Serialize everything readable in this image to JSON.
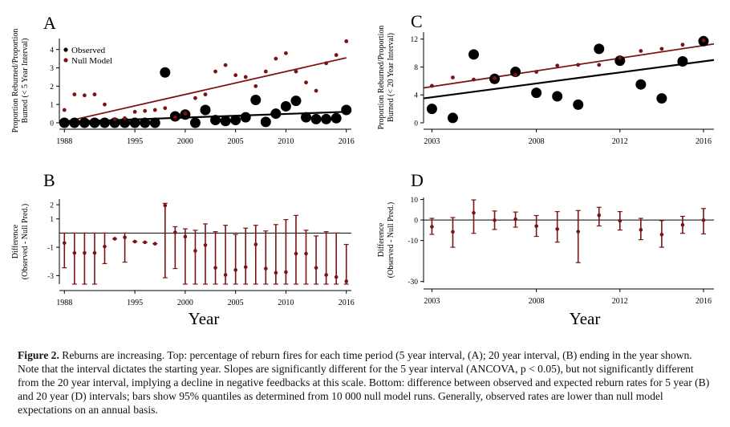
{
  "colors": {
    "observed": "#000000",
    "null_model": "#7a1414",
    "axis": "#000000"
  },
  "caption": {
    "lead": "Figure 2.",
    "text": " Reburns are increasing. Top: percentage of reburn fires for each time period (5 year interval, (A); 20 year interval, (B) ending in the year shown. Note that the interval dictates the starting year. Slopes are significantly different for the 5 year interval (ANCOVA, p < 0.05), but not significantly different from the 20 year interval, implying a decline in negative feedbacks at this scale. Bottom: difference between observed and expected reburn rates for 5 year (B) and 20 year (D) intervals; bars show 95% quantiles as determined from 10 000 null model runs. Generally, observed rates are lower than null model expectations on an annual basis."
  },
  "x_axis_label": "Year",
  "chart_data": [
    {
      "panel": "A",
      "type": "scatter",
      "ylabel_line1": "Proportion Reburned/Proportion",
      "ylabel_line2": "Burned (< 5 Year Interval)",
      "xlim": [
        1987.5,
        2016.5
      ],
      "ylim": [
        0,
        4.6
      ],
      "xticks": [
        "1988",
        "1995",
        "2000",
        "2005",
        "2010",
        "2016"
      ],
      "xtick_values": [
        1988,
        1995,
        2000,
        2005,
        2010,
        2016
      ],
      "yticks": [
        "0",
        "1",
        "2",
        "3",
        "4"
      ],
      "ytick_values": [
        0,
        1,
        2,
        3,
        4
      ],
      "legend": [
        "Observed",
        "Null Model"
      ],
      "legend_position": "top-left",
      "x": [
        1988,
        1989,
        1990,
        1991,
        1992,
        1993,
        1994,
        1995,
        1996,
        1997,
        1998,
        1999,
        2000,
        2001,
        2002,
        2003,
        2004,
        2005,
        2006,
        2007,
        2008,
        2009,
        2010,
        2011,
        2012,
        2013,
        2014,
        2015,
        2016
      ],
      "observed": [
        0,
        0,
        0,
        0,
        0,
        0,
        0,
        0,
        0,
        0,
        2.75,
        0.35,
        0.45,
        0,
        0.7,
        0.15,
        0.1,
        0.15,
        0.3,
        1.25,
        0.05,
        0.5,
        0.9,
        1.2,
        0.3,
        0.2,
        0.2,
        0.25,
        0.7
      ],
      "null_model": [
        0.7,
        1.55,
        1.5,
        1.55,
        1.0,
        0.2,
        0.25,
        0.6,
        0.65,
        0.7,
        0.8,
        0.3,
        0.5,
        1.35,
        1.55,
        2.8,
        3.15,
        2.6,
        2.5,
        2.0,
        2.8,
        3.5,
        3.8,
        2.8,
        2.2,
        1.75,
        3.25,
        3.7,
        4.45
      ],
      "observed_trend": [
        [
          1988,
          0.05
        ],
        [
          2016,
          0.6
        ]
      ],
      "null_trend": [
        [
          1988,
          0.05
        ],
        [
          2016,
          3.55
        ]
      ]
    },
    {
      "panel": "C",
      "type": "scatter",
      "ylabel_line1": "Proportion Reburned/Proportion",
      "ylabel_line2": "Burned (< 20 Year Interval)",
      "xlim": [
        2002.6,
        2016.5
      ],
      "ylim": [
        0,
        13
      ],
      "xticks": [
        "2003",
        "2008",
        "2012",
        "2016"
      ],
      "xtick_values": [
        2003,
        2008,
        2012,
        2016
      ],
      "yticks": [
        "0",
        "4",
        "8",
        "12"
      ],
      "ytick_values": [
        0,
        4,
        8,
        12
      ],
      "x": [
        2003,
        2004,
        2005,
        2006,
        2007,
        2008,
        2009,
        2010,
        2011,
        2012,
        2013,
        2014,
        2015,
        2016
      ],
      "observed": [
        2.0,
        0.7,
        9.8,
        6.3,
        7.3,
        4.3,
        3.8,
        2.6,
        10.6,
        8.9,
        5.5,
        3.5,
        8.8,
        11.7
      ],
      "null_model": [
        5.3,
        6.5,
        6.2,
        6.4,
        6.9,
        7.3,
        8.2,
        8.3,
        8.3,
        9.3,
        10.3,
        10.6,
        11.2,
        11.8
      ],
      "observed_trend": [
        [
          2002.6,
          3.5
        ],
        [
          2016.5,
          9.0
        ]
      ],
      "null_trend": [
        [
          2002.6,
          5.0
        ],
        [
          2016.5,
          11.3
        ]
      ]
    },
    {
      "panel": "B",
      "type": "errorbar",
      "ylabel_line1": "Difference",
      "ylabel_line2": "(Observed - Null Pred.)",
      "xlim": [
        1987.5,
        2016.5
      ],
      "ylim": [
        -3.6,
        2.4
      ],
      "xticks": [
        "1988",
        "1995",
        "2000",
        "2005",
        "2010",
        "2016"
      ],
      "xtick_values": [
        1988,
        1995,
        2000,
        2005,
        2010,
        2016
      ],
      "yticks": [
        "-3",
        "-1",
        "1",
        "2"
      ],
      "ytick_values": [
        -3,
        -1,
        1,
        2
      ],
      "x": [
        1988,
        1989,
        1990,
        1991,
        1992,
        1993,
        1994,
        1995,
        1996,
        1997,
        1998,
        1999,
        2000,
        2001,
        2002,
        2003,
        2004,
        2005,
        2006,
        2007,
        2008,
        2009,
        2010,
        2011,
        2012,
        2013,
        2014,
        2015,
        2016
      ],
      "value": [
        -0.7,
        -1.4,
        -1.4,
        -1.4,
        -0.95,
        -0.4,
        -0.3,
        -0.6,
        -0.65,
        -0.75,
        1.95,
        0.05,
        -0.25,
        -1.25,
        -0.85,
        -2.45,
        -2.95,
        -2.6,
        -2.4,
        -0.8,
        -2.5,
        -2.8,
        -2.75,
        -1.45,
        -1.45,
        -2.45,
        -2.95,
        -3.1,
        -3.4
      ],
      "lower": [
        -2.45,
        -3.6,
        -3.6,
        -3.6,
        -2.15,
        -0.4,
        -2.05,
        -0.6,
        -0.65,
        -0.75,
        -3.15,
        -2.5,
        -3.6,
        -3.6,
        -3.6,
        -3.6,
        -3.6,
        -3.6,
        -3.6,
        -3.6,
        -3.6,
        -3.6,
        -3.6,
        -3.6,
        -3.6,
        -3.6,
        -3.6,
        -3.6,
        -3.6
      ],
      "upper": [
        0,
        0,
        0,
        0,
        0,
        -0.4,
        0,
        -0.6,
        -0.65,
        -0.75,
        2.1,
        0.45,
        0.3,
        0.2,
        0.65,
        0.1,
        0.55,
        -0.1,
        0.35,
        0.55,
        0.15,
        0.6,
        0.95,
        1.25,
        0.2,
        -0.2,
        0.1,
        0,
        -0.8
      ]
    },
    {
      "panel": "D",
      "type": "errorbar",
      "ylabel_line1": "Difference",
      "ylabel_line2": "(Observed - Null Pred.)",
      "xlim": [
        2002.6,
        2016.5
      ],
      "ylim": [
        -30.5,
        11
      ],
      "xticks": [
        "2003",
        "2008",
        "2012",
        "2016"
      ],
      "xtick_values": [
        2003,
        2008,
        2012,
        2016
      ],
      "yticks": [
        "-30",
        "-10",
        "0",
        "10"
      ],
      "ytick_values": [
        -30,
        -10,
        0,
        10
      ],
      "x": [
        2003,
        2004,
        2005,
        2006,
        2007,
        2008,
        2009,
        2010,
        2011,
        2012,
        2013,
        2014,
        2015,
        2016
      ],
      "value": [
        -3.3,
        -5.8,
        3.5,
        -0.1,
        0.4,
        -3.0,
        -4.4,
        -5.7,
        2.3,
        -0.4,
        -4.8,
        -7.1,
        -2.4,
        -0.1
      ],
      "lower": [
        -7.0,
        -13.3,
        -6.5,
        -4.6,
        -3.5,
        -8.0,
        -10.8,
        -20.8,
        -2.9,
        -4.9,
        -9.6,
        -13.3,
        -6.5,
        -6.8
      ],
      "upper": [
        0.8,
        1.2,
        9.8,
        4.4,
        3.9,
        2.2,
        4.1,
        4.6,
        6.2,
        4.1,
        0.8,
        -0.3,
        1.8,
        5.6
      ]
    }
  ]
}
